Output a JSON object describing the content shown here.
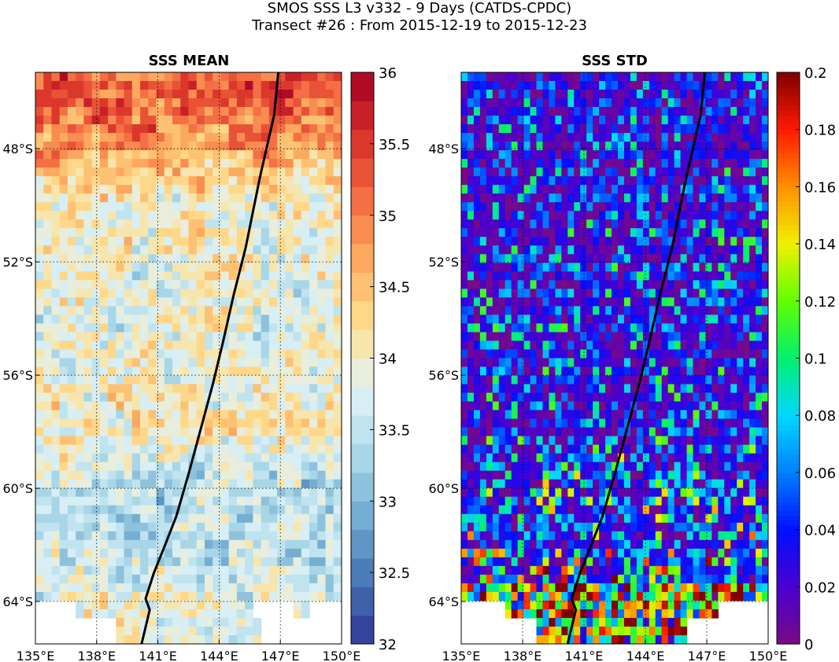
{
  "figure": {
    "title_line1": "SMOS SSS L3 v332 - 9 Days (CATDS-CPDC)",
    "title_line2": "Transect #26 : From 2015-12-19 to 2015-12-23"
  },
  "chart_data": [
    {
      "type": "heatmap",
      "title": "SSS MEAN",
      "xlabel": "",
      "ylabel": "",
      "x_ticks": [
        "135°E",
        "138°E",
        "141°E",
        "144°E",
        "147°E",
        "150°E"
      ],
      "x_tick_values": [
        135,
        138,
        141,
        144,
        147,
        150
      ],
      "y_ticks": [
        "48°S",
        "52°S",
        "56°S",
        "60°S",
        "64°S"
      ],
      "y_tick_values": [
        -48,
        -52,
        -56,
        -60,
        -64
      ],
      "xlim": [
        135,
        150
      ],
      "ylim": [
        -65.5,
        -45.3
      ],
      "grid": true,
      "colorbar": {
        "min": 32,
        "max": 36,
        "ticks": [
          "32",
          "32.5",
          "33",
          "33.5",
          "34",
          "34.5",
          "35",
          "35.5",
          "36"
        ],
        "tick_values": [
          32,
          32.5,
          33,
          33.5,
          34,
          34.5,
          35,
          35.5,
          36
        ],
        "colormap": "RdYlBu_r",
        "levels": 20
      },
      "field_description_rows": [
        {
          "lat": -46,
          "mean_value": 35.3
        },
        {
          "lat": -48,
          "mean_value": 34.8
        },
        {
          "lat": -50,
          "mean_value": 34.0
        },
        {
          "lat": -52,
          "mean_value": 33.9
        },
        {
          "lat": -54,
          "mean_value": 33.8
        },
        {
          "lat": -56,
          "mean_value": 33.9
        },
        {
          "lat": -58,
          "mean_value": 34.1
        },
        {
          "lat": -60,
          "mean_value": 33.4
        },
        {
          "lat": -62,
          "mean_value": 33.5
        },
        {
          "lat": -64,
          "mean_value": 33.8
        }
      ],
      "transect": {
        "color": "#000000",
        "lon": [
          146.9,
          146.7,
          146.0,
          145.3,
          144.7,
          144.2,
          143.7,
          143.1,
          142.5,
          141.9,
          141.3,
          140.8,
          140.4,
          140.6,
          140.2
        ],
        "lat": [
          -45.3,
          -46.8,
          -49.0,
          -51.5,
          -53.2,
          -54.8,
          -56.3,
          -57.9,
          -59.5,
          -61.0,
          -62.1,
          -63.0,
          -63.9,
          -64.3,
          -65.5
        ]
      }
    },
    {
      "type": "heatmap",
      "title": "SSS STD",
      "xlabel": "",
      "ylabel": "",
      "x_ticks": [
        "135°E",
        "138°E",
        "141°E",
        "144°E",
        "147°E",
        "150°E"
      ],
      "x_tick_values": [
        135,
        138,
        141,
        144,
        147,
        150
      ],
      "y_ticks": [
        "48°S",
        "52°S",
        "56°S",
        "60°S",
        "64°S"
      ],
      "y_tick_values": [
        -48,
        -52,
        -56,
        -60,
        -64
      ],
      "xlim": [
        135,
        150
      ],
      "ylim": [
        -65.5,
        -45.3
      ],
      "grid": true,
      "colorbar": {
        "min": 0,
        "max": 0.2,
        "ticks": [
          "0",
          "0.02",
          "0.04",
          "0.06",
          "0.08",
          "0.1",
          "0.12",
          "0.14",
          "0.16",
          "0.18",
          "0.2"
        ],
        "tick_values": [
          0,
          0.02,
          0.04,
          0.06,
          0.08,
          0.1,
          0.12,
          0.14,
          0.16,
          0.18,
          0.2
        ],
        "colormap": "jet",
        "levels": 200
      },
      "field_description_rows": [
        {
          "lat": -46,
          "mean_value": 0.035
        },
        {
          "lat": -50,
          "mean_value": 0.04
        },
        {
          "lat": -54,
          "mean_value": 0.04
        },
        {
          "lat": -58,
          "mean_value": 0.045
        },
        {
          "lat": -62,
          "mean_value": 0.06
        },
        {
          "lat": -64,
          "mean_value": 0.1
        }
      ],
      "transect": {
        "color": "#000000",
        "lon": [
          146.9,
          146.7,
          146.0,
          145.3,
          144.7,
          144.2,
          143.7,
          143.1,
          142.5,
          141.9,
          141.3,
          140.8,
          140.4,
          140.6,
          140.2
        ],
        "lat": [
          -45.3,
          -46.8,
          -49.0,
          -51.5,
          -53.2,
          -54.8,
          -56.3,
          -57.9,
          -59.5,
          -61.0,
          -62.1,
          -63.0,
          -63.9,
          -64.3,
          -65.5
        ]
      }
    }
  ]
}
